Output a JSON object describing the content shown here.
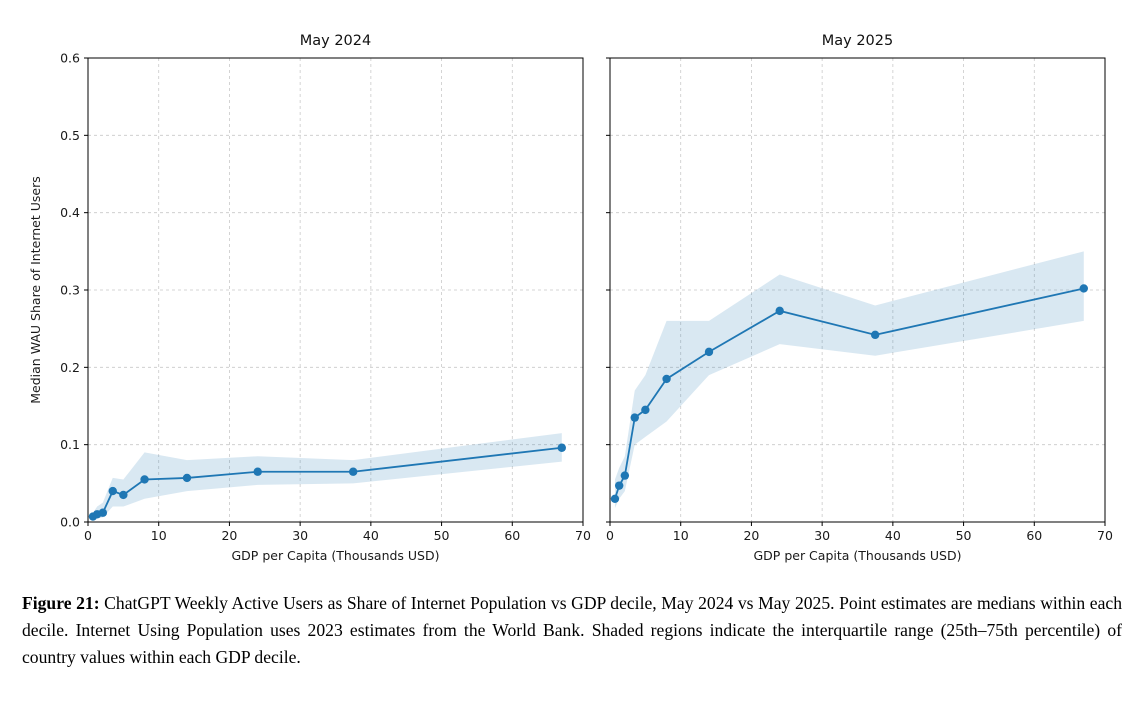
{
  "caption": {
    "label": "Figure 21:",
    "text": "ChatGPT Weekly Active Users as Share of Internet Population vs GDP decile, May 2024 vs May 2025. Point estimates are medians within each decile. Internet Using Population uses 2023 estimates from the World Bank. Shaded regions indicate the interquartile range (25th–75th percentile) of country values within each GDP decile."
  },
  "style": {
    "line_color": "#1f77b4",
    "band_color": "#1f77b4",
    "band_opacity": 0.17,
    "grid_color": "#c9c9c9",
    "spine_color": "#000000",
    "text_color": "#1a1a1a"
  },
  "chart_data": [
    {
      "type": "line",
      "title": "May 2024",
      "xlabel": "GDP per Capita (Thousands USD)",
      "ylabel": "Median WAU Share of Internet Users",
      "xlim": [
        0,
        70
      ],
      "ylim": [
        0,
        0.6
      ],
      "xticks": [
        0,
        10,
        20,
        30,
        40,
        50,
        60,
        70
      ],
      "yticks": [
        0.0,
        0.1,
        0.2,
        0.3,
        0.4,
        0.5,
        0.6
      ],
      "grid": true,
      "show_y_tick_labels": true,
      "x": [
        0.7,
        1.3,
        2.1,
        3.5,
        5,
        8,
        14,
        24,
        37.5,
        67
      ],
      "y": [
        0.007,
        0.01,
        0.012,
        0.04,
        0.035,
        0.055,
        0.057,
        0.065,
        0.065,
        0.096
      ],
      "band_lower": [
        0.003,
        0.005,
        0.006,
        0.02,
        0.02,
        0.03,
        0.04,
        0.048,
        0.05,
        0.078
      ],
      "band_upper": [
        0.012,
        0.02,
        0.025,
        0.057,
        0.055,
        0.09,
        0.08,
        0.085,
        0.08,
        0.115
      ]
    },
    {
      "type": "line",
      "title": "May 2025",
      "xlabel": "GDP per Capita (Thousands USD)",
      "ylabel": "",
      "xlim": [
        0,
        70
      ],
      "ylim": [
        0,
        0.6
      ],
      "xticks": [
        0,
        10,
        20,
        30,
        40,
        50,
        60,
        70
      ],
      "yticks": [
        0.0,
        0.1,
        0.2,
        0.3,
        0.4,
        0.5,
        0.6
      ],
      "grid": true,
      "show_y_tick_labels": false,
      "x": [
        0.7,
        1.3,
        2.1,
        3.5,
        5,
        8,
        14,
        24,
        37.5,
        67
      ],
      "y": [
        0.03,
        0.047,
        0.06,
        0.135,
        0.145,
        0.185,
        0.22,
        0.273,
        0.242,
        0.302
      ],
      "band_lower": [
        0.018,
        0.03,
        0.04,
        0.1,
        0.11,
        0.13,
        0.19,
        0.23,
        0.215,
        0.26
      ],
      "band_upper": [
        0.055,
        0.07,
        0.085,
        0.17,
        0.19,
        0.26,
        0.26,
        0.32,
        0.28,
        0.35
      ]
    }
  ]
}
